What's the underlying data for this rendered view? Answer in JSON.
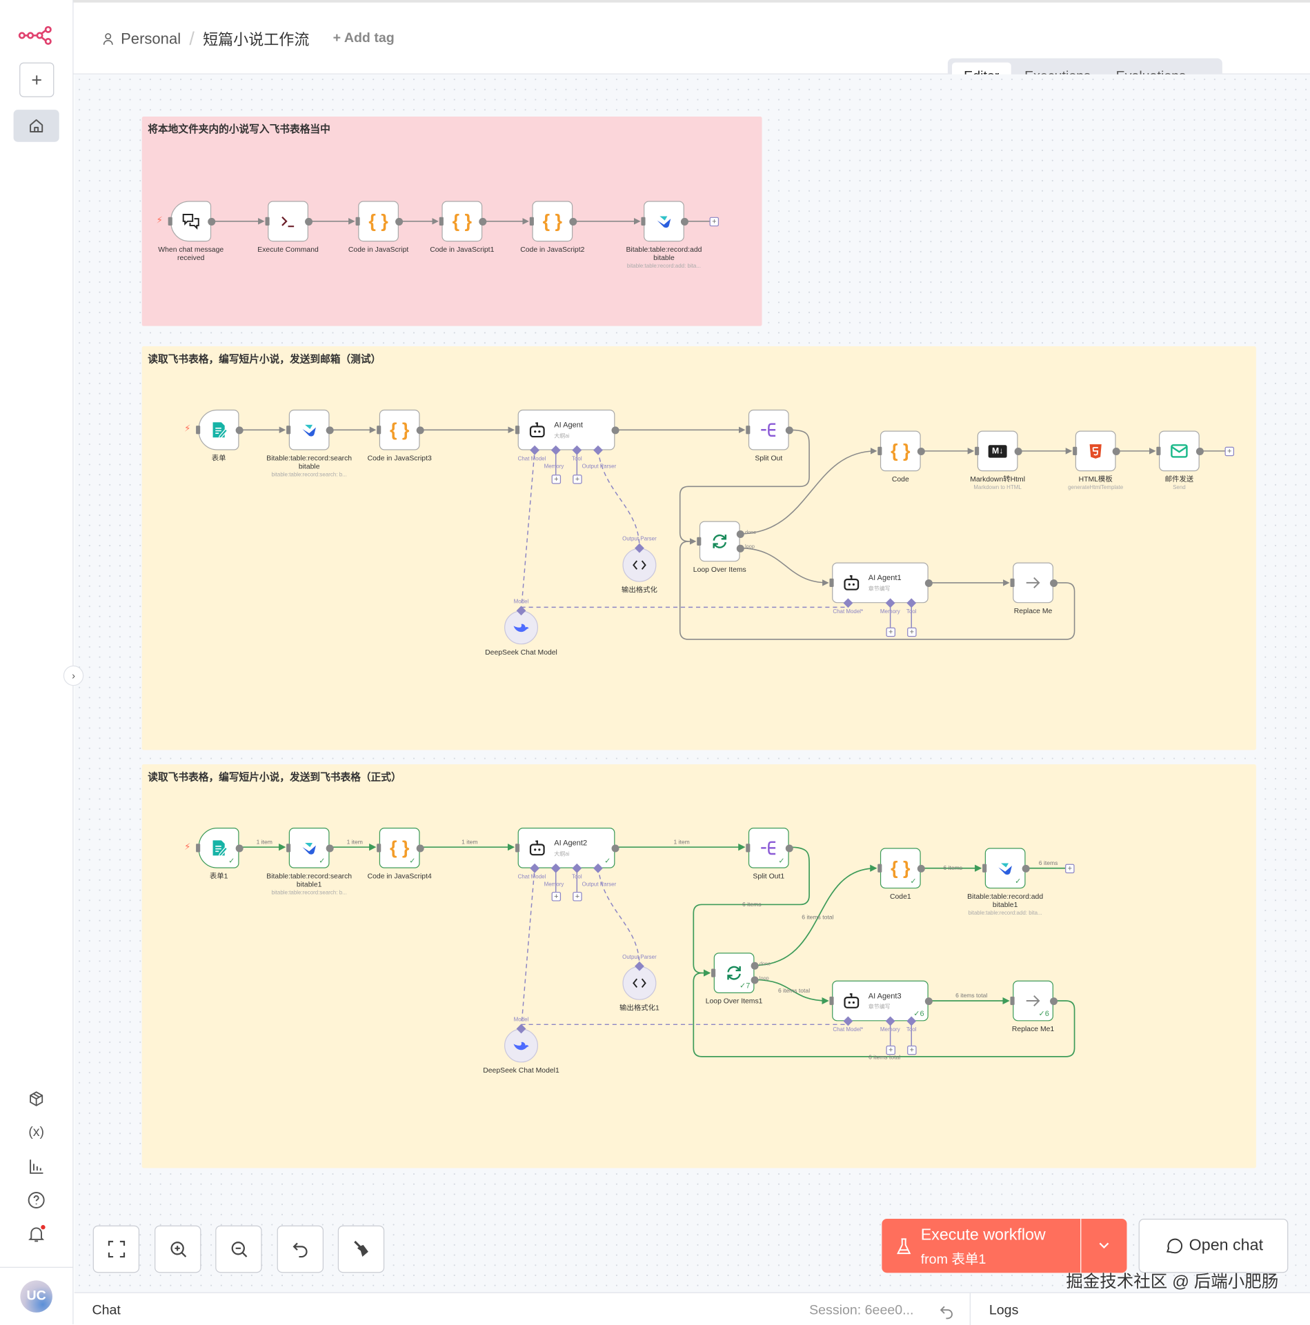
{
  "header": {
    "project": "Personal",
    "workflow_name": "短篇小说工作流",
    "add_tag": "+ Add tag",
    "tabs": [
      {
        "label": "Editor",
        "active": true
      },
      {
        "label": "Executions"
      },
      {
        "label": "Evaluations"
      }
    ]
  },
  "sidebar": {
    "avatar_initials": "UC",
    "icons": [
      "n8n-logo",
      "plus-icon",
      "home-icon",
      "templates-icon",
      "variables-icon",
      "insights-icon",
      "help-icon",
      "bell-icon"
    ],
    "notification_dot_color": "#e5312d"
  },
  "colors": {
    "accent": "#ff6f5c",
    "success": "#3d9b59",
    "sticky_pink": "#fbd6da",
    "sticky_yellow": "#fff4d6",
    "ai_handle": "#8b84c4"
  },
  "stickies": [
    {
      "title": "将本地文件夹内的小说写入飞书表格当中"
    },
    {
      "title": "读取飞书表格，编写短片小说，发送到邮箱（测试）"
    },
    {
      "title": "读取飞书表格，编写短片小说，发送到飞书表格（正式）"
    }
  ],
  "nodes": {
    "a1": {
      "label": "When chat message received",
      "icon": "chat-icon"
    },
    "a2": {
      "label": "Execute Command",
      "icon": "terminal-icon"
    },
    "a3": {
      "label": "Code in JavaScript",
      "icon": "code-icon"
    },
    "a4": {
      "label": "Code in JavaScript1",
      "icon": "code-icon"
    },
    "a5": {
      "label": "Code in JavaScript2",
      "icon": "code-icon"
    },
    "a6": {
      "label": "Bitable:table:record:add bitable",
      "sub": "bitable:table:record:add: bita...",
      "icon": "bitable-icon"
    },
    "b1": {
      "label": "表单",
      "icon": "form-icon"
    },
    "b2": {
      "label": "Bitable:table:record:search bitable",
      "sub": "bitable:table:record:search: b...",
      "icon": "bitable-icon"
    },
    "b3": {
      "label": "Code in JavaScript3",
      "icon": "code-icon"
    },
    "b4": {
      "label": "AI Agent",
      "sub": "大纲ai",
      "icon": "robot-icon"
    },
    "b5": {
      "label": "Split Out",
      "icon": "split-icon"
    },
    "b6": {
      "label": "Code",
      "icon": "code-icon"
    },
    "b7": {
      "label": "Markdown转Html",
      "sub": "Markdown to HTML",
      "icon": "markdown-icon"
    },
    "b8": {
      "label": "HTML模板",
      "sub": "generateHtmlTemplate",
      "icon": "html5-icon"
    },
    "b9": {
      "label": "邮件发送",
      "sub": "Send",
      "icon": "mail-icon"
    },
    "b10": {
      "label": "Loop Over Items",
      "icon": "loop-icon"
    },
    "b11": {
      "label": "AI Agent1",
      "sub": "章节编写",
      "icon": "robot-icon"
    },
    "b12": {
      "label": "Replace Me",
      "icon": "arrow-right-icon"
    },
    "b13": {
      "label": "输出格式化",
      "icon": "code-brackets-icon",
      "top_label": "Output Parser"
    },
    "b14": {
      "label": "DeepSeek Chat Model",
      "icon": "deepseek-icon",
      "top_label": "Model"
    },
    "c1": {
      "label": "表单1",
      "icon": "form-icon",
      "check": "✓"
    },
    "c2": {
      "label": "Bitable:table:record:search bitable1",
      "sub": "bitable:table:record:search: b...",
      "icon": "bitable-icon",
      "check": "✓"
    },
    "c3": {
      "label": "Code in JavaScript4",
      "icon": "code-icon",
      "check": "✓"
    },
    "c4": {
      "label": "AI Agent2",
      "sub": "大纲ai",
      "icon": "robot-icon",
      "check": "✓"
    },
    "c5": {
      "label": "Split Out1",
      "icon": "split-icon",
      "check": "✓"
    },
    "c6": {
      "label": "Code1",
      "icon": "code-icon",
      "check": "✓"
    },
    "c7": {
      "label": "Bitable:table:record:add bitable1",
      "sub": "bitable:table:record:add: bita...",
      "icon": "bitable-icon",
      "check": "✓"
    },
    "c10": {
      "label": "Loop Over Items1",
      "icon": "loop-icon",
      "check": "✓7"
    },
    "c11": {
      "label": "AI Agent3",
      "sub": "章节编写",
      "icon": "robot-icon",
      "check": "✓6"
    },
    "c12": {
      "label": "Replace Me1",
      "icon": "arrow-right-icon",
      "check": "✓6"
    },
    "c13": {
      "label": "输出格式化1",
      "icon": "code-brackets-icon",
      "top_label": "Output Parser"
    },
    "c14": {
      "label": "DeepSeek Chat Model1",
      "icon": "deepseek-icon",
      "top_label": "Model"
    }
  },
  "agent_handles": {
    "agent": [
      "Chat Model",
      "Memory",
      "Tool",
      "Output Parser"
    ],
    "agent_sub": [
      "Chat Model*",
      "Memory",
      "Tool"
    ]
  },
  "loop_outputs": [
    "done",
    "loop"
  ],
  "edge_labels": {
    "one_item": "1 item",
    "six_items": "6 items",
    "six_items_total": "6 items total"
  },
  "toolbar": {
    "buttons": [
      "fit-view-icon",
      "zoom-in-icon",
      "zoom-out-icon",
      "undo-icon",
      "clean-up-icon"
    ]
  },
  "execute": {
    "title": "Execute workflow",
    "subtitle": "from 表单1"
  },
  "open_chat": "Open chat",
  "bottom": {
    "chat": "Chat",
    "session": "Session: 6eee0...",
    "logs": "Logs"
  },
  "watermark": "掘金技术社区 @ 后端小肥肠"
}
